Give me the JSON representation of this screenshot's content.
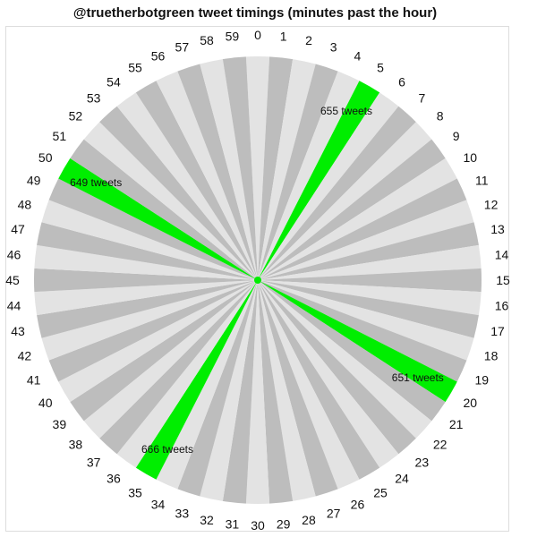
{
  "chart_data": {
    "type": "radial-bar",
    "title": "@truetherbotgreen tweet timings (minutes past the hour)",
    "categories": [
      "0",
      "1",
      "2",
      "3",
      "4",
      "5",
      "6",
      "7",
      "8",
      "9",
      "10",
      "11",
      "12",
      "13",
      "14",
      "15",
      "16",
      "17",
      "18",
      "19",
      "20",
      "21",
      "22",
      "23",
      "24",
      "25",
      "26",
      "27",
      "28",
      "29",
      "30",
      "31",
      "32",
      "33",
      "34",
      "35",
      "36",
      "37",
      "38",
      "39",
      "40",
      "41",
      "42",
      "43",
      "44",
      "45",
      "46",
      "47",
      "48",
      "49",
      "50",
      "51",
      "52",
      "53",
      "54",
      "55",
      "56",
      "57",
      "58",
      "59"
    ],
    "series": [
      {
        "values": [
          0,
          0,
          0,
          0,
          0,
          655,
          0,
          0,
          0,
          0,
          0,
          0,
          0,
          0,
          0,
          0,
          0,
          0,
          0,
          0,
          651,
          0,
          0,
          0,
          0,
          0,
          0,
          0,
          0,
          0,
          0,
          0,
          0,
          0,
          0,
          666,
          0,
          0,
          0,
          0,
          0,
          0,
          0,
          0,
          0,
          0,
          0,
          0,
          0,
          0,
          649,
          0,
          0,
          0,
          0,
          0,
          0,
          0,
          0,
          0
        ]
      }
    ],
    "annotations": [
      {
        "minute": 5,
        "text": "655 tweets"
      },
      {
        "minute": 20,
        "text": "651 tweets"
      },
      {
        "minute": 35,
        "text": "666 tweets"
      },
      {
        "minute": 50,
        "text": "649 tweets"
      }
    ],
    "colors": {
      "even_wedge": "#e3e3e3",
      "odd_wedge": "#bdbdbd",
      "highlight": "#00ee00"
    }
  }
}
